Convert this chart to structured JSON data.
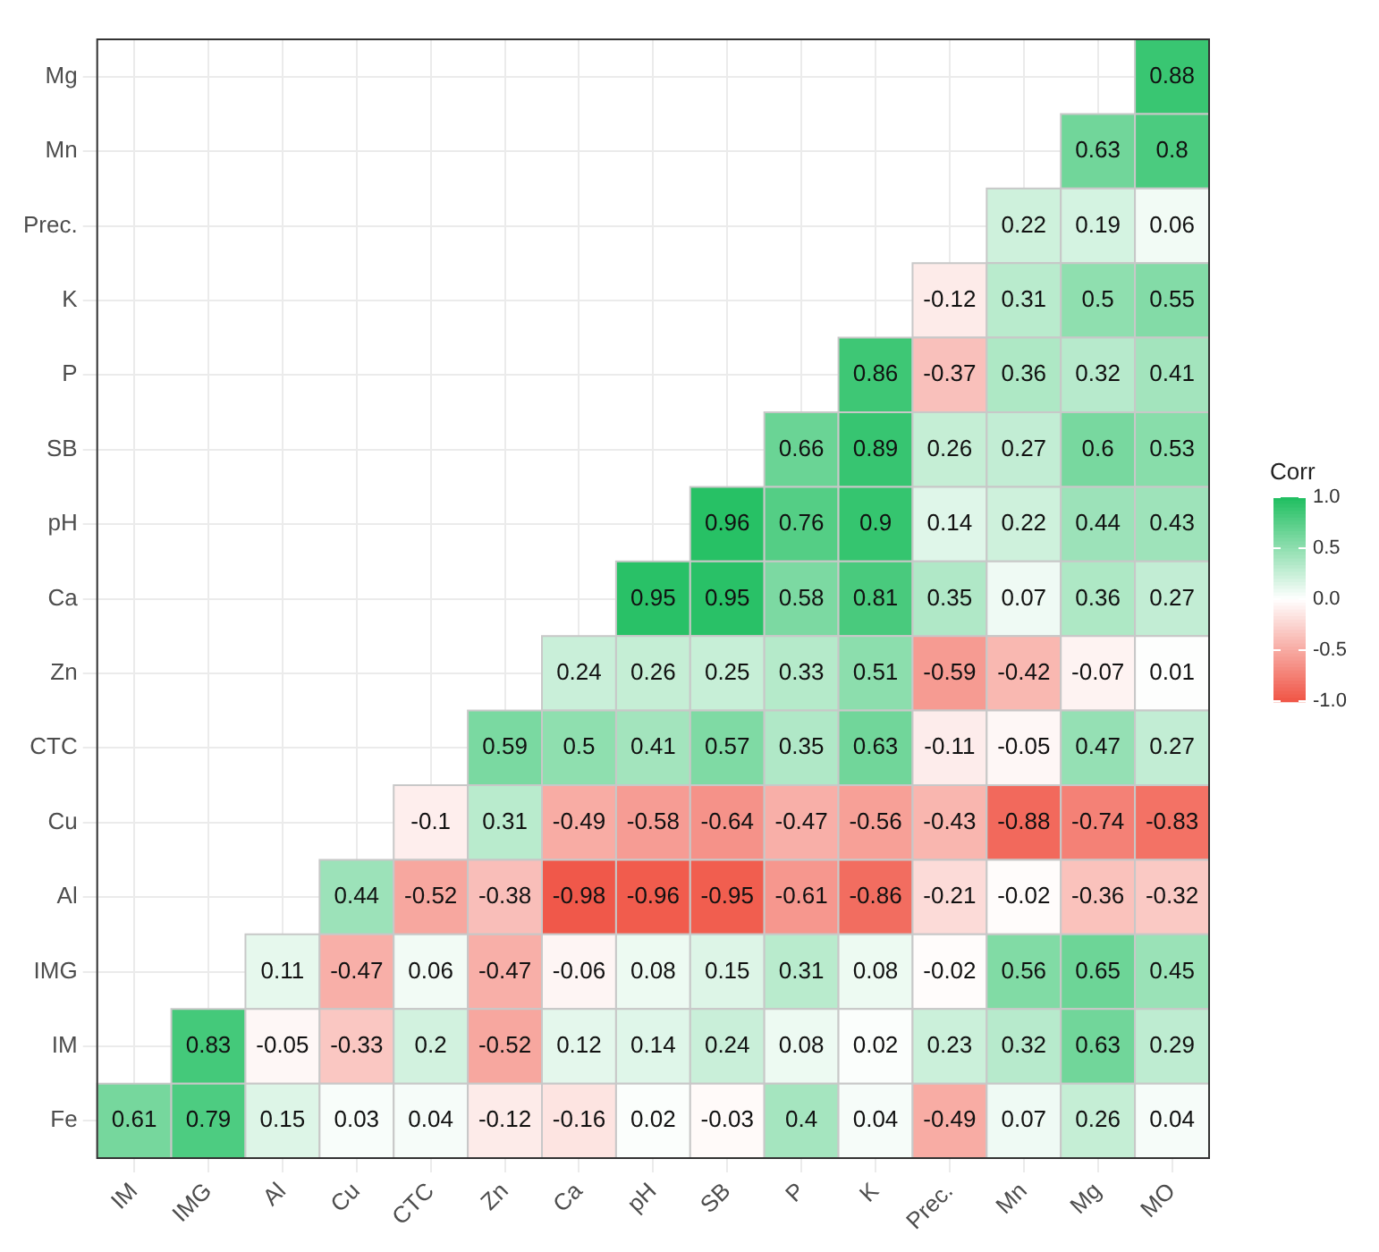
{
  "chart_data": {
    "type": "heatmap",
    "categories": [
      "IM",
      "IMG",
      "Al",
      "Cu",
      "CTC",
      "Zn",
      "Ca",
      "pH",
      "SB",
      "P",
      "K",
      "Prec.",
      "Mn",
      "Mg",
      "MO"
    ],
    "y_categories": [
      "Mg",
      "Mn",
      "Prec.",
      "K",
      "P",
      "SB",
      "pH",
      "Ca",
      "Zn",
      "CTC",
      "Cu",
      "Al",
      "IMG",
      "IM",
      "Fe"
    ],
    "cells": [
      [
        null,
        null,
        null,
        null,
        null,
        null,
        null,
        null,
        null,
        null,
        null,
        null,
        null,
        null,
        0.88
      ],
      [
        null,
        null,
        null,
        null,
        null,
        null,
        null,
        null,
        null,
        null,
        null,
        null,
        null,
        0.63,
        0.8
      ],
      [
        null,
        null,
        null,
        null,
        null,
        null,
        null,
        null,
        null,
        null,
        null,
        null,
        0.22,
        0.19,
        0.06
      ],
      [
        null,
        null,
        null,
        null,
        null,
        null,
        null,
        null,
        null,
        null,
        null,
        -0.12,
        0.31,
        0.5,
        0.55
      ],
      [
        null,
        null,
        null,
        null,
        null,
        null,
        null,
        null,
        null,
        null,
        0.86,
        -0.37,
        0.36,
        0.32,
        0.41
      ],
      [
        null,
        null,
        null,
        null,
        null,
        null,
        null,
        null,
        null,
        0.66,
        0.89,
        0.26,
        0.27,
        0.6,
        0.53
      ],
      [
        null,
        null,
        null,
        null,
        null,
        null,
        null,
        null,
        0.96,
        0.76,
        0.9,
        0.14,
        0.22,
        0.44,
        0.43
      ],
      [
        null,
        null,
        null,
        null,
        null,
        null,
        null,
        0.95,
        0.95,
        0.58,
        0.81,
        0.35,
        0.07,
        0.36,
        0.27
      ],
      [
        null,
        null,
        null,
        null,
        null,
        null,
        0.24,
        0.26,
        0.25,
        0.33,
        0.51,
        -0.59,
        -0.42,
        -0.07,
        0.01
      ],
      [
        null,
        null,
        null,
        null,
        null,
        0.59,
        0.5,
        0.41,
        0.57,
        0.35,
        0.63,
        -0.11,
        -0.05,
        0.47,
        0.27
      ],
      [
        null,
        null,
        null,
        null,
        -0.1,
        0.31,
        -0.49,
        -0.58,
        -0.64,
        -0.47,
        -0.56,
        -0.43,
        -0.88,
        -0.74,
        -0.83
      ],
      [
        null,
        null,
        null,
        0.44,
        -0.52,
        -0.38,
        -0.98,
        -0.96,
        -0.95,
        -0.61,
        -0.86,
        -0.21,
        -0.02,
        -0.36,
        -0.32
      ],
      [
        null,
        null,
        0.11,
        -0.47,
        0.06,
        -0.47,
        -0.06,
        0.08,
        0.15,
        0.31,
        0.08,
        -0.02,
        0.56,
        0.65,
        0.45
      ],
      [
        null,
        0.83,
        -0.05,
        -0.33,
        0.2,
        -0.52,
        0.12,
        0.14,
        0.24,
        0.08,
        0.02,
        0.23,
        0.32,
        0.63,
        0.29
      ],
      [
        0.61,
        0.79,
        0.15,
        0.03,
        0.04,
        -0.12,
        -0.16,
        0.02,
        -0.03,
        0.4,
        0.04,
        -0.49,
        0.07,
        0.26,
        0.04
      ]
    ],
    "clabel": "Corr",
    "clim": [
      -1,
      1
    ],
    "cticks": [
      {
        "value": 1,
        "label": "1.0"
      },
      0.5,
      {
        "value": 0,
        "label": "0.0"
      },
      -0.5,
      {
        "value": -1,
        "label": "-1.0"
      }
    ],
    "data_labels": true,
    "grid": true
  }
}
